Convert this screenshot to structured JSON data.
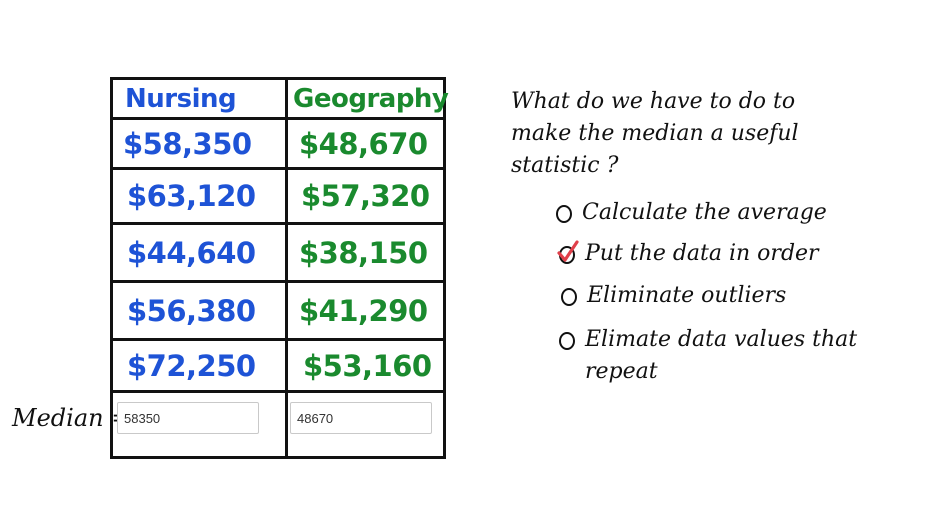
{
  "table": {
    "headers": [
      "Nursing",
      "Geography"
    ],
    "rows": [
      [
        "$58,350",
        "$48,670"
      ],
      [
        "$63,120",
        "$57,320"
      ],
      [
        "$44,640",
        "$38,150"
      ],
      [
        "$56,380",
        "$41,290"
      ],
      [
        "$72,250",
        "$53,160"
      ]
    ],
    "header_colors": {
      "left": "#1e53d6",
      "right": "#1a8a2e"
    }
  },
  "median": {
    "label": "Median =",
    "nursing_value": "58350",
    "geography_value": "48670"
  },
  "question": {
    "text": "What do we have to do to make the median a useful statistic ?",
    "options": [
      {
        "label": "Calculate the average",
        "checked": false
      },
      {
        "label": "Put the data in order",
        "checked": true
      },
      {
        "label": "Eliminate outliers",
        "checked": false
      },
      {
        "label": "Elimate data values that repeat",
        "checked": false
      }
    ],
    "check_color": "#e0404a"
  }
}
